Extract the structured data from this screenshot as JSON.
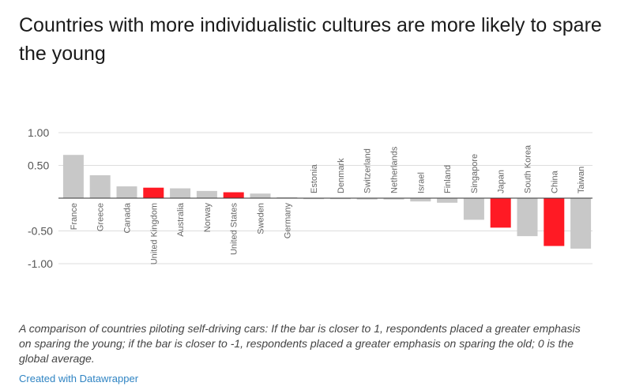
{
  "title": "Countries with more individualistic cultures are more likely to spare the young",
  "description": "A comparison of countries piloting self-driving cars: If the bar is closer to 1, respondents placed a greater emphasis on sparing the young; if the bar is closer to -1, respondents placed a greater emphasis on sparing the old; 0 is the global average.",
  "credit": "Created with Datawrapper",
  "colors": {
    "default_bar": "#c8c8c8",
    "highlight_bar": "#ff1a24",
    "grid": "#dddddd",
    "zero_line": "#333333"
  },
  "chart_data": {
    "type": "bar",
    "title": "Countries with more individualistic cultures are more likely to spare the young",
    "categories": [
      "France",
      "Greece",
      "Canada",
      "United Kingdom",
      "Australia",
      "Norway",
      "United States",
      "Sweden",
      "Germany",
      "Estonia",
      "Denmark",
      "Switzerland",
      "Netherlands",
      "Israel",
      "Finland",
      "Singapore",
      "Japan",
      "South Korea",
      "China",
      "Taiwan"
    ],
    "values": [
      0.66,
      0.35,
      0.18,
      0.16,
      0.15,
      0.11,
      0.09,
      0.07,
      0.01,
      -0.01,
      -0.01,
      -0.02,
      -0.02,
      -0.05,
      -0.07,
      -0.33,
      -0.45,
      -0.58,
      -0.73,
      -0.77
    ],
    "highlighted": [
      "United Kingdom",
      "United States",
      "Japan",
      "China"
    ],
    "yticks": [
      1.0,
      0.5,
      -0.5,
      -1.0
    ],
    "ytick_labels": [
      "1.00",
      "0.50",
      "-0.50",
      "-1.00"
    ],
    "ylim": [
      -1.0,
      1.0
    ],
    "xlabel": "",
    "ylabel": "",
    "grid": true
  }
}
